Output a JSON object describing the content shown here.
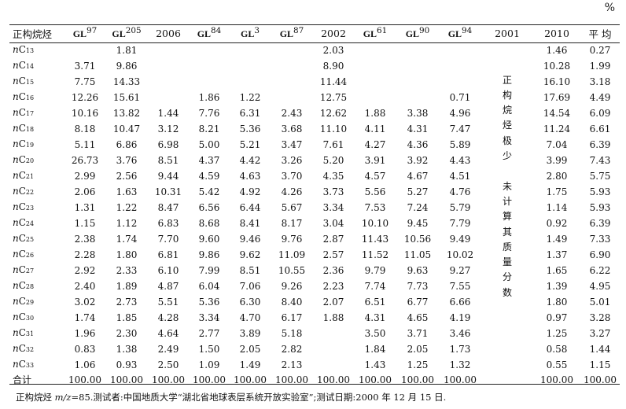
{
  "unit": "%",
  "headers": {
    "label": "正构烷烃",
    "cols": [
      {
        "kind": "gl",
        "text": "97"
      },
      {
        "kind": "gl",
        "text": "205"
      },
      {
        "kind": "plain",
        "text": "2006"
      },
      {
        "kind": "gl",
        "text": "84"
      },
      {
        "kind": "gl",
        "text": "3"
      },
      {
        "kind": "gl",
        "text": "87"
      },
      {
        "kind": "plain",
        "text": "2002"
      },
      {
        "kind": "gl",
        "text": "61"
      },
      {
        "kind": "gl",
        "text": "90"
      },
      {
        "kind": "gl",
        "text": "94"
      },
      {
        "kind": "plain",
        "text": "2001"
      },
      {
        "kind": "plain",
        "text": "2010"
      },
      {
        "kind": "plain",
        "text": "平 均"
      }
    ],
    "gl_prefix": "GL"
  },
  "note_2001": [
    "正",
    "构",
    "烷",
    "烃",
    "极",
    "少",
    "",
    "未",
    "计",
    "算",
    "其",
    "质",
    "量",
    "分",
    "数"
  ],
  "rows": [
    {
      "n": "13",
      "v": [
        "",
        "1.81",
        "",
        "",
        "",
        "",
        "2.03",
        "",
        "",
        "",
        "1.46",
        "0.27"
      ]
    },
    {
      "n": "14",
      "v": [
        "3.71",
        "9.86",
        "",
        "",
        "",
        "",
        "8.90",
        "",
        "",
        "",
        "10.28",
        "1.99"
      ]
    },
    {
      "n": "15",
      "v": [
        "7.75",
        "14.33",
        "",
        "",
        "",
        "",
        "11.44",
        "",
        "",
        "",
        "16.10",
        "3.18"
      ]
    },
    {
      "n": "16",
      "v": [
        "12.26",
        "15.61",
        "",
        "1.86",
        "1.22",
        "",
        "12.75",
        "",
        "",
        "0.71",
        "17.69",
        "4.49"
      ]
    },
    {
      "n": "17",
      "v": [
        "10.16",
        "13.82",
        "1.44",
        "7.76",
        "6.31",
        "2.43",
        "12.62",
        "1.88",
        "3.38",
        "4.96",
        "14.54",
        "6.09"
      ]
    },
    {
      "n": "18",
      "v": [
        "8.18",
        "10.47",
        "3.12",
        "8.21",
        "5.36",
        "3.68",
        "11.10",
        "4.11",
        "4.31",
        "7.47",
        "11.24",
        "6.61"
      ]
    },
    {
      "n": "19",
      "v": [
        "5.11",
        "6.86",
        "6.98",
        "5.00",
        "5.21",
        "3.47",
        "7.61",
        "4.27",
        "4.36",
        "5.89",
        "7.04",
        "6.39"
      ]
    },
    {
      "n": "20",
      "v": [
        "26.73",
        "3.76",
        "8.51",
        "4.37",
        "4.42",
        "3.26",
        "5.20",
        "3.91",
        "3.92",
        "4.43",
        "3.99",
        "7.43"
      ]
    },
    {
      "n": "21",
      "v": [
        "2.99",
        "2.56",
        "9.44",
        "4.59",
        "4.63",
        "3.70",
        "4.35",
        "4.57",
        "4.67",
        "4.51",
        "2.80",
        "5.75"
      ]
    },
    {
      "n": "22",
      "v": [
        "2.06",
        "1.63",
        "10.31",
        "5.42",
        "4.92",
        "4.26",
        "3.73",
        "5.56",
        "5.27",
        "4.76",
        "1.75",
        "5.93"
      ]
    },
    {
      "n": "23",
      "v": [
        "1.31",
        "1.22",
        "8.47",
        "6.56",
        "6.44",
        "5.67",
        "3.34",
        "7.53",
        "7.24",
        "5.79",
        "1.14",
        "5.93"
      ]
    },
    {
      "n": "24",
      "v": [
        "1.15",
        "1.12",
        "6.83",
        "8.68",
        "8.41",
        "8.17",
        "3.04",
        "10.10",
        "9.45",
        "7.79",
        "0.92",
        "6.39"
      ]
    },
    {
      "n": "25",
      "v": [
        "2.38",
        "1.74",
        "7.70",
        "9.60",
        "9.46",
        "9.76",
        "2.87",
        "11.43",
        "10.56",
        "9.49",
        "1.49",
        "7.33"
      ]
    },
    {
      "n": "26",
      "v": [
        "2.28",
        "1.80",
        "6.81",
        "9.86",
        "9.62",
        "11.09",
        "2.57",
        "11.52",
        "11.05",
        "10.02",
        "1.37",
        "6.90"
      ]
    },
    {
      "n": "27",
      "v": [
        "2.92",
        "2.33",
        "6.10",
        "7.99",
        "8.51",
        "10.55",
        "2.36",
        "9.79",
        "9.63",
        "9.27",
        "1.65",
        "6.22"
      ]
    },
    {
      "n": "28",
      "v": [
        "2.40",
        "1.89",
        "4.87",
        "6.04",
        "7.06",
        "9.26",
        "2.23",
        "7.74",
        "7.73",
        "7.55",
        "1.39",
        "4.95"
      ]
    },
    {
      "n": "29",
      "v": [
        "3.02",
        "2.73",
        "5.51",
        "5.36",
        "6.30",
        "8.40",
        "2.07",
        "6.51",
        "6.77",
        "6.66",
        "1.80",
        "5.01"
      ]
    },
    {
      "n": "30",
      "v": [
        "1.74",
        "1.85",
        "4.28",
        "3.34",
        "4.70",
        "6.17",
        "1.88",
        "4.31",
        "4.65",
        "4.19",
        "0.97",
        "3.28"
      ]
    },
    {
      "n": "31",
      "v": [
        "1.96",
        "2.30",
        "4.64",
        "2.77",
        "3.89",
        "5.18",
        "",
        "3.50",
        "3.71",
        "3.46",
        "1.25",
        "3.27"
      ]
    },
    {
      "n": "32",
      "v": [
        "0.83",
        "1.38",
        "2.49",
        "1.50",
        "2.05",
        "2.82",
        "",
        "1.84",
        "2.05",
        "1.73",
        "0.58",
        "1.44"
      ]
    },
    {
      "n": "33",
      "v": [
        "1.06",
        "0.93",
        "2.50",
        "1.09",
        "1.49",
        "2.13",
        "",
        "1.43",
        "1.25",
        "1.32",
        "0.55",
        "1.15"
      ]
    }
  ],
  "total": {
    "label": "合计",
    "v": [
      "100.00",
      "100.00",
      "100.00",
      "100.00",
      "100.00",
      "100.00",
      "100.00",
      "100.00",
      "100.00",
      "100.00",
      "100.00",
      "100.00"
    ]
  },
  "footer": {
    "prefix": "正构烷烃 ",
    "mz": "m/z",
    "rest": "=85.测试者:中国地质大学“湖北省地球表层系统开放实验室”;测试日期:2000 年 12 月 15 日."
  }
}
